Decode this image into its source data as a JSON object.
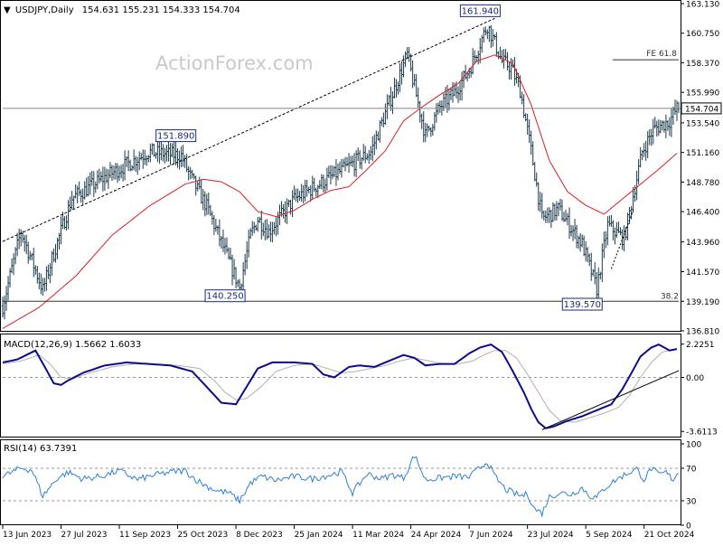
{
  "chart_data": [
    {
      "type": "ohlc",
      "symbol": "USDJPY",
      "timeframe": "Daily",
      "header": "USDJPY,Daily",
      "ohlc_text": "154.631 155.231 154.333 154.704",
      "open": 154.631,
      "high": 155.231,
      "low": 154.333,
      "close": 154.704,
      "watermark": "ActionForex.com",
      "ylim": [
        136.81,
        163.13
      ],
      "y_ticks": [
        "163.130",
        "160.750",
        "158.370",
        "155.990",
        "153.540",
        "151.160",
        "148.780",
        "146.400",
        "143.960",
        "141.570",
        "139.190",
        "136.810"
      ],
      "y_tick_values": [
        163.13,
        160.75,
        158.37,
        155.99,
        153.54,
        151.16,
        148.78,
        146.4,
        143.96,
        141.57,
        139.19,
        136.81
      ],
      "current_price_label": "154.704",
      "x_ticks": [
        "13 Jun 2023",
        "27 Jul 2023",
        "11 Sep 2023",
        "25 Oct 2023",
        "8 Dec 2023",
        "25 Jan 2024",
        "11 Mar 2024",
        "24 Apr 2024",
        "7 Jun 2024",
        "23 Jul 2024",
        "5 Sep 2024",
        "21 Oct 2024"
      ],
      "x_tick_values": [
        0,
        32,
        64,
        96,
        128,
        160,
        192,
        224,
        256,
        288,
        320,
        352
      ],
      "x_range": [
        0,
        371
      ],
      "price_series": {
        "key_index": [
          0,
          10,
          22,
          27,
          38,
          60,
          80,
          98,
          103,
          112,
          130,
          136,
          140,
          146,
          160,
          185,
          202,
          222,
          232,
          240,
          248,
          256,
          266,
          274,
          279,
          284,
          290,
          296,
          305,
          318,
          326,
          332,
          341,
          351,
          357,
          366,
          370
        ],
        "key_close": [
          138.8,
          144.8,
          140.1,
          142.6,
          147.5,
          149.5,
          151.2,
          150.9,
          149.2,
          146.8,
          140.3,
          144.5,
          145.8,
          144.8,
          147.4,
          149.6,
          151.2,
          159.0,
          152.5,
          154.8,
          156.0,
          157.8,
          161.4,
          158.5,
          158.0,
          156.2,
          151.3,
          145.8,
          146.6,
          143.8,
          140.2,
          145.3,
          144.2,
          151.2,
          153.0,
          153.7,
          154.7
        ]
      },
      "moving_average": {
        "key_index": [
          0,
          20,
          40,
          60,
          80,
          100,
          110,
          120,
          130,
          140,
          150,
          160,
          170,
          180,
          190,
          200,
          210,
          220,
          230,
          240,
          250,
          260,
          270,
          280,
          290,
          300,
          310,
          320,
          330,
          340,
          350,
          360,
          370
        ],
        "key_value": [
          137.0,
          138.7,
          141.2,
          144.5,
          146.8,
          148.6,
          149.0,
          148.8,
          148.0,
          146.4,
          146.0,
          146.5,
          147.4,
          148.1,
          148.4,
          149.8,
          151.3,
          153.7,
          154.8,
          155.8,
          156.7,
          158.5,
          159.0,
          158.3,
          155.0,
          150.5,
          148.0,
          146.9,
          146.2,
          147.4,
          148.6,
          149.8,
          151.1
        ]
      },
      "trendline_upper": {
        "x": [
          0,
          270
        ],
        "y": [
          144.0,
          161.94
        ]
      },
      "dotted_line": {
        "x": [
          334,
          346
        ],
        "y": [
          141.8,
          146.5
        ]
      },
      "horizontal_lines": [
        {
          "label": "38.2",
          "value": 139.19
        },
        {
          "label": "FE 61.8",
          "value": 158.9
        }
      ],
      "annotations": [
        {
          "text": "161.940",
          "index": 270,
          "value": 161.94,
          "anchor": "above"
        },
        {
          "text": "151.890",
          "index": 103,
          "value": 151.89,
          "anchor": "above"
        },
        {
          "text": "140.250",
          "index": 130,
          "value": 140.25,
          "anchor": "below"
        },
        {
          "text": "139.570",
          "index": 326,
          "value": 139.57,
          "anchor": "below"
        }
      ]
    },
    {
      "type": "line",
      "title": "MACD(12,26,9) 1.5662 1.6033",
      "main_value": 1.5662,
      "signal_value": 1.6033,
      "ylim": [
        -3.9,
        2.75
      ],
      "y_ticks": [
        "2.2251",
        "0.00",
        "-3.6113"
      ],
      "y_tick_values": [
        2.2251,
        0.0,
        -3.6113
      ],
      "macd": {
        "key_index": [
          0,
          8,
          18,
          24,
          28,
          32,
          36,
          44,
          56,
          68,
          80,
          92,
          104,
          114,
          120,
          128,
          132,
          140,
          148,
          152,
          160,
          170,
          176,
          182,
          190,
          196,
          204,
          212,
          220,
          226,
          232,
          240,
          248,
          256,
          262,
          268,
          274,
          280,
          286,
          290,
          294,
          298,
          302,
          310,
          318,
          326,
          334,
          340,
          346,
          350,
          356,
          360,
          366,
          370
        ],
        "key_value": [
          1.0,
          1.2,
          1.8,
          0.5,
          -0.4,
          -0.5,
          -0.2,
          0.3,
          0.8,
          1.0,
          0.9,
          0.8,
          0.4,
          -0.9,
          -1.7,
          -1.8,
          -1.0,
          0.6,
          1.0,
          1.0,
          1.0,
          0.9,
          0.2,
          0.0,
          0.7,
          0.8,
          0.7,
          1.1,
          1.5,
          1.3,
          0.8,
          0.9,
          0.9,
          1.6,
          2.0,
          2.2,
          1.7,
          0.4,
          -1.0,
          -2.1,
          -3.0,
          -3.4,
          -3.3,
          -2.9,
          -2.6,
          -2.2,
          -1.8,
          -0.8,
          0.5,
          1.4,
          2.0,
          2.2,
          1.8,
          1.9
        ]
      },
      "signal": {
        "key_index": [
          0,
          10,
          20,
          26,
          32,
          38,
          48,
          60,
          72,
          84,
          96,
          108,
          116,
          122,
          128,
          134,
          142,
          150,
          160,
          170,
          178,
          186,
          194,
          202,
          210,
          218,
          226,
          234,
          242,
          250,
          258,
          264,
          270,
          276,
          282,
          288,
          294,
          300,
          306,
          314,
          322,
          330,
          338,
          344,
          350,
          356,
          362,
          370
        ],
        "key_value": [
          0.9,
          1.1,
          1.5,
          0.9,
          0.0,
          -0.1,
          0.3,
          0.7,
          0.9,
          0.9,
          0.8,
          0.6,
          -0.2,
          -1.0,
          -1.5,
          -1.4,
          -0.6,
          0.4,
          0.8,
          0.9,
          0.6,
          0.3,
          0.4,
          0.6,
          0.8,
          1.1,
          1.3,
          1.1,
          0.9,
          0.9,
          1.1,
          1.5,
          1.8,
          1.8,
          1.3,
          0.2,
          -1.0,
          -2.2,
          -2.9,
          -3.0,
          -2.7,
          -2.4,
          -2.0,
          -1.2,
          0.0,
          1.0,
          1.7,
          1.9
        ]
      },
      "trendline": {
        "x": [
          296,
          371
        ],
        "y": [
          -3.5,
          0.45
        ]
      }
    },
    {
      "type": "line",
      "title": "RSI(14) 63.7391",
      "value": 63.7391,
      "ylim": [
        0,
        100
      ],
      "y_ticks": [
        "100",
        "70",
        "30",
        "0"
      ],
      "y_tick_values": [
        100,
        70,
        30,
        0
      ],
      "levels": [
        70,
        30
      ],
      "rsi": {
        "key_index": [
          0,
          10,
          16,
          22,
          26,
          30,
          36,
          44,
          54,
          64,
          74,
          84,
          94,
          100,
          106,
          112,
          118,
          124,
          130,
          136,
          142,
          150,
          160,
          170,
          180,
          186,
          192,
          200,
          208,
          214,
          220,
          226,
          232,
          240,
          248,
          256,
          262,
          266,
          270,
          276,
          280,
          284,
          288,
          292,
          296,
          300,
          306,
          312,
          318,
          322,
          326,
          330,
          336,
          342,
          348,
          352,
          356,
          360,
          364,
          368,
          370
        ],
        "key_value": [
          60,
          70,
          68,
          36,
          47,
          58,
          65,
          57,
          60,
          67,
          56,
          62,
          66,
          67,
          56,
          48,
          42,
          40,
          30,
          52,
          60,
          55,
          60,
          57,
          62,
          66,
          40,
          63,
          57,
          62,
          58,
          86,
          56,
          58,
          60,
          59,
          71,
          78,
          60,
          44,
          40,
          36,
          38,
          20,
          15,
          35,
          40,
          38,
          46,
          36,
          34,
          45,
          55,
          63,
          69,
          56,
          70,
          62,
          65,
          56,
          64
        ]
      },
      "current_value_note": "63.7391"
    }
  ]
}
